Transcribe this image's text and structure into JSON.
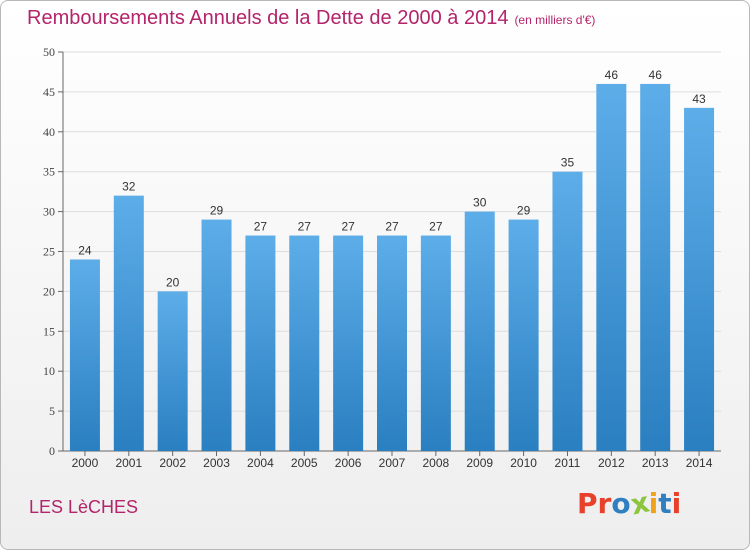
{
  "header": {
    "title": "Remboursements Annuels de la Dette de 2000 à 2014",
    "unit": "(en milliers d'€)"
  },
  "footer": {
    "commune": "LES LèCHES",
    "logo_text": "Proxiti",
    "logo_colors": [
      "#e8402a",
      "#e8402a",
      "#2f7fc1",
      "#8cc63f",
      "#f0a21b",
      "#2f7fc1",
      "#e8402a"
    ]
  },
  "colors": {
    "bar_light": "#5dade9",
    "bar_dark": "#2a7fc0",
    "title": "#b3246b",
    "grid": "#dddddd"
  },
  "chart_data": {
    "type": "bar",
    "categories": [
      "2000",
      "2001",
      "2002",
      "2003",
      "2004",
      "2005",
      "2006",
      "2007",
      "2008",
      "2009",
      "2010",
      "2011",
      "2012",
      "2013",
      "2014"
    ],
    "values": [
      24,
      32,
      20,
      29,
      27,
      27,
      27,
      27,
      27,
      30,
      29,
      35,
      46,
      46,
      43
    ],
    "yticks": [
      0,
      5,
      10,
      15,
      20,
      25,
      30,
      35,
      40,
      45,
      50
    ],
    "ylim": [
      0,
      50
    ],
    "grid": true
  }
}
